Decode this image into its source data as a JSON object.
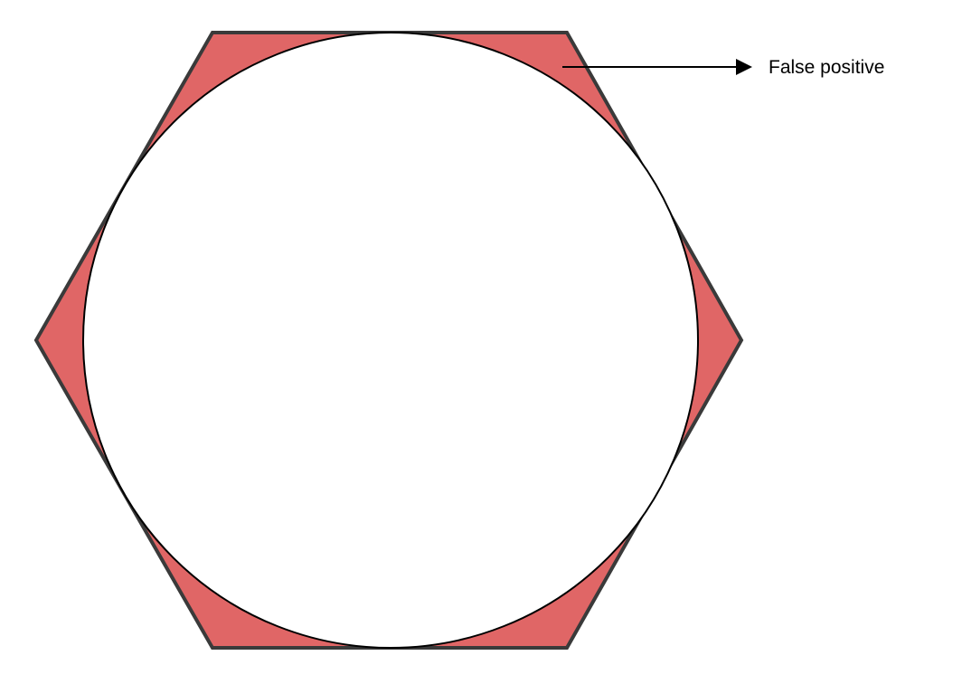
{
  "diagram": {
    "annotation_label": "False positive",
    "colors": {
      "background": "#ffffff",
      "hexagon_fill": "#e06666",
      "hexagon_stroke": "#3a3a3a",
      "circle_fill": "#ffffff",
      "circle_stroke": "#000000",
      "arrow": "#000000"
    }
  }
}
